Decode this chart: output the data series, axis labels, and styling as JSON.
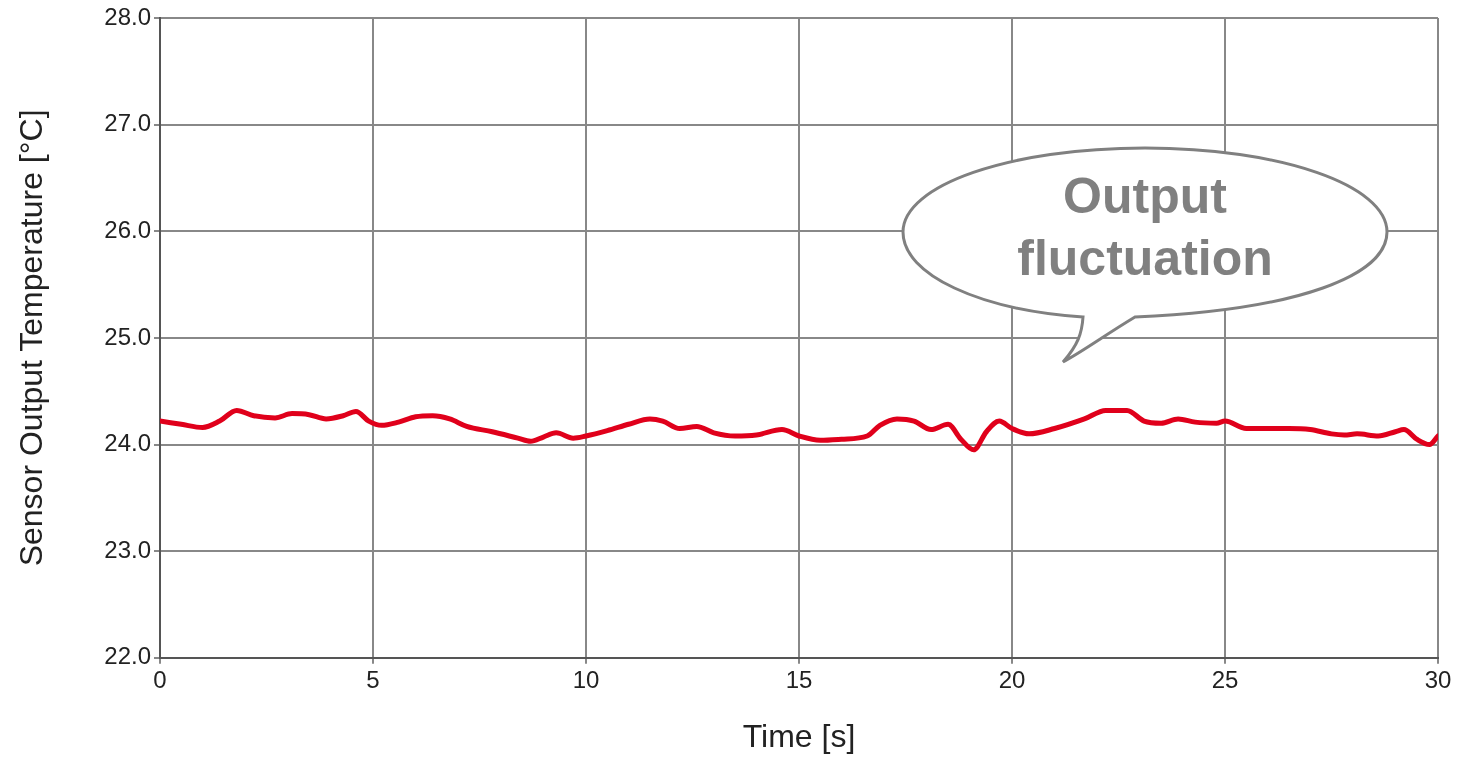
{
  "chart_data": {
    "type": "line",
    "xlabel": "Time [s]",
    "ylabel": "Sensor Output Temperature [°C]",
    "xlim": [
      0,
      30
    ],
    "xticks": [
      0,
      5,
      10,
      15,
      20,
      25,
      30
    ],
    "ylim": [
      22,
      28
    ],
    "yticks": [
      {
        "value": 22,
        "label": "22.0"
      },
      {
        "value": 23,
        "label": "23.0"
      },
      {
        "value": 24,
        "label": "24.0"
      },
      {
        "value": 25,
        "label": "25.0"
      },
      {
        "value": 26,
        "label": "26.0"
      },
      {
        "value": 27,
        "label": "27.0"
      },
      {
        "value": 28,
        "label": "28.0"
      }
    ],
    "grid": true,
    "legend": false,
    "marker": "none",
    "line_style": "solid",
    "annotations": [
      "Output fluctuation"
    ],
    "series": [
      {
        "color": "#e0001b",
        "x": [
          0,
          0.5,
          1.0,
          1.4,
          1.8,
          2.2,
          2.7,
          3.1,
          3.5,
          3.9,
          4.3,
          4.6,
          4.9,
          5.2,
          5.6,
          6.0,
          6.4,
          6.8,
          7.2,
          7.8,
          8.4,
          8.7,
          9.0,
          9.3,
          9.7,
          10.0,
          10.5,
          11.0,
          11.5,
          11.8,
          12.2,
          12.6,
          13.0,
          13.5,
          14.0,
          14.6,
          15.0,
          15.5,
          16.0,
          16.6,
          16.9,
          17.3,
          17.7,
          18.1,
          18.5,
          18.8,
          19.1,
          19.4,
          19.7,
          20.0,
          20.4,
          21.0,
          21.7,
          22.2,
          22.7,
          23.1,
          23.5,
          23.9,
          24.3,
          24.8,
          25.0,
          25.5,
          26.0,
          26.5,
          27.0,
          27.5,
          27.8,
          28.1,
          28.6,
          29.0,
          29.2,
          29.5,
          29.8,
          30.0
        ],
        "values": [
          24.22,
          24.19,
          24.16,
          24.22,
          24.32,
          24.27,
          24.25,
          24.29,
          24.28,
          24.24,
          24.27,
          24.31,
          24.22,
          24.18,
          24.21,
          24.26,
          24.27,
          24.24,
          24.17,
          24.12,
          24.06,
          24.03,
          24.07,
          24.11,
          24.06,
          24.08,
          24.13,
          24.19,
          24.24,
          24.22,
          24.15,
          24.17,
          24.11,
          24.08,
          24.09,
          24.14,
          24.08,
          24.04,
          24.05,
          24.08,
          24.18,
          24.24,
          24.22,
          24.14,
          24.19,
          24.05,
          23.95,
          24.12,
          24.22,
          24.15,
          24.1,
          24.15,
          24.24,
          24.32,
          24.32,
          24.22,
          24.2,
          24.24,
          24.21,
          24.2,
          24.22,
          24.15,
          24.15,
          24.15,
          24.14,
          24.1,
          24.09,
          24.1,
          24.08,
          24.12,
          24.14,
          24.05,
          24.0,
          24.08
        ]
      }
    ]
  }
}
